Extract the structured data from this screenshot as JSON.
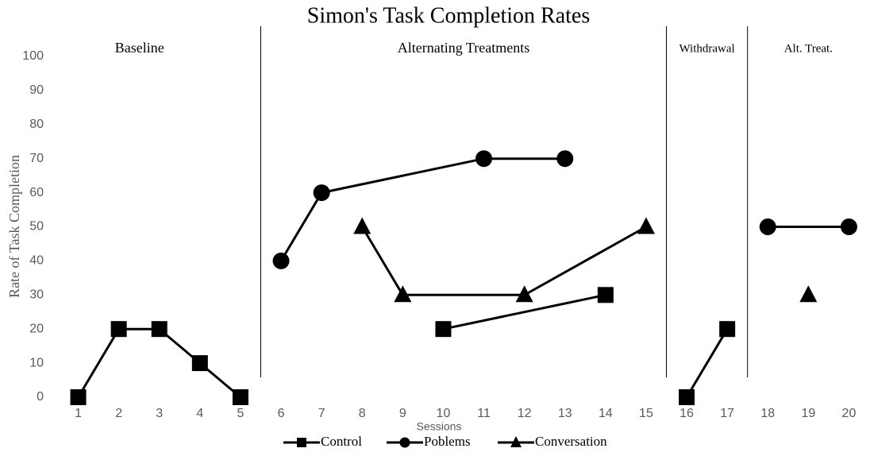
{
  "chart_data": {
    "type": "line",
    "title": "Simon's Task Completion Rates",
    "x_label": "Sessions",
    "y_label": "Rate of Task Completion",
    "xlim": [
      0.5,
      20.5
    ],
    "xticks": [
      1,
      2,
      3,
      4,
      5,
      6,
      7,
      8,
      9,
      10,
      11,
      12,
      13,
      14,
      15,
      16,
      17,
      18,
      19,
      20
    ],
    "ylim": [
      0,
      100
    ],
    "yticks": [
      0,
      10,
      20,
      30,
      40,
      50,
      60,
      70,
      80,
      90,
      100
    ],
    "color": "#000000",
    "series": [
      {
        "name": "Control",
        "marker": "square"
      },
      {
        "name": "Poblems",
        "marker": "circle"
      },
      {
        "name": "Conversation",
        "marker": "triangle"
      }
    ],
    "phases": [
      {
        "label": "Baseline",
        "data": [
          {
            "x": [
              1,
              2,
              3,
              4,
              5
            ],
            "values": [
              0,
              20,
              20,
              10,
              0
            ]
          },
          {
            "x": [],
            "values": []
          },
          {
            "x": [],
            "values": []
          }
        ]
      },
      {
        "label": "Alternating Treatments",
        "data": [
          {
            "x": [
              10,
              14
            ],
            "values": [
              20,
              30
            ]
          },
          {
            "x": [
              6,
              7,
              11,
              13
            ],
            "values": [
              40,
              60,
              70,
              70
            ]
          },
          {
            "x": [
              8,
              9,
              12,
              15
            ],
            "values": [
              50,
              30,
              30,
              50
            ]
          }
        ]
      },
      {
        "label": "Withdrawal",
        "data": [
          {
            "x": [
              16,
              17
            ],
            "values": [
              0,
              20
            ]
          },
          {
            "x": [],
            "values": []
          },
          {
            "x": [],
            "values": []
          }
        ]
      },
      {
        "label": "Alt. Treat.",
        "data": [
          {
            "x": [],
            "values": []
          },
          {
            "x": [
              18,
              20
            ],
            "values": [
              50,
              50
            ]
          },
          {
            "x": [
              19
            ],
            "values": [
              30
            ]
          }
        ]
      }
    ]
  }
}
